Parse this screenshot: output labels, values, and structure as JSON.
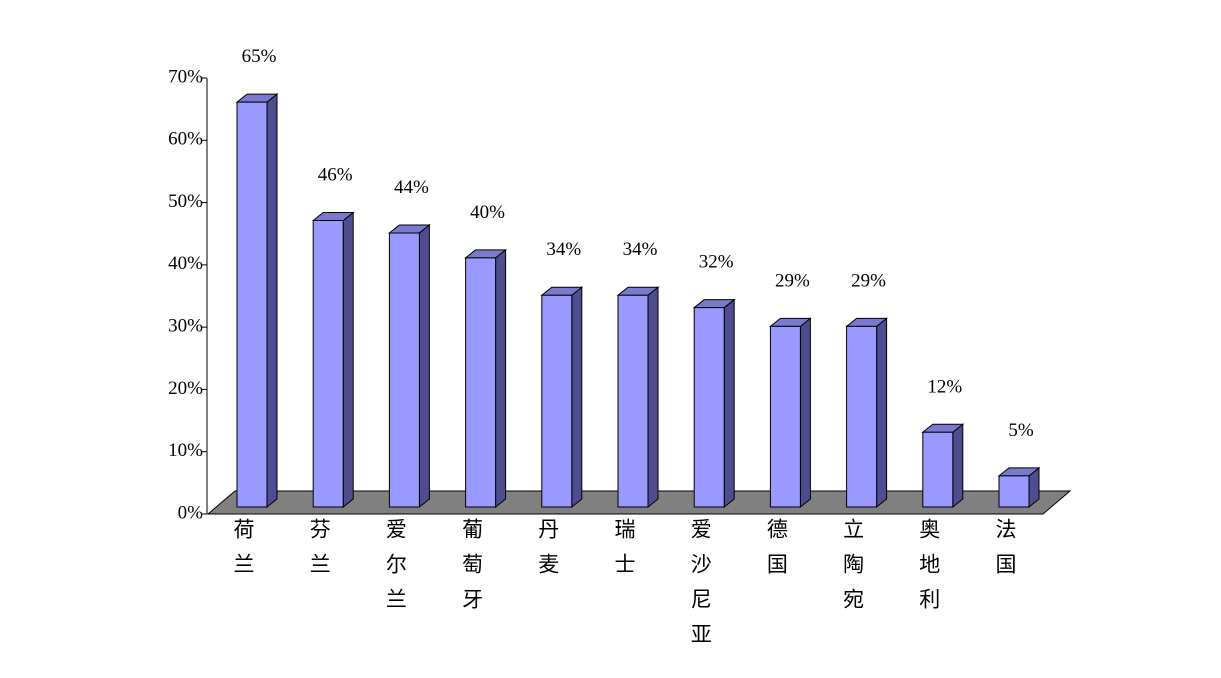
{
  "chart_data": {
    "type": "bar3d",
    "categories": [
      "荷兰",
      "芬兰",
      "爱尔兰",
      "葡萄牙",
      "丹麦",
      "瑞士",
      "爱沙尼亚",
      "德国",
      "立陶宛",
      "奥地利",
      "法国"
    ],
    "values": [
      65,
      46,
      44,
      40,
      34,
      34,
      32,
      29,
      29,
      12,
      5
    ],
    "value_labels": [
      "65%",
      "46%",
      "44%",
      "40%",
      "34%",
      "34%",
      "32%",
      "29%",
      "29%",
      "12%",
      "5%"
    ],
    "color": "#9999ff",
    "ylim": [
      0,
      70
    ],
    "yticks": [
      {
        "value": 0,
        "label": "0%"
      },
      {
        "value": 10,
        "label": "10%"
      },
      {
        "value": 20,
        "label": "20%"
      },
      {
        "value": 30,
        "label": "30%"
      },
      {
        "value": 40,
        "label": "40%"
      },
      {
        "value": 50,
        "label": "50%"
      },
      {
        "value": 60,
        "label": "60%"
      },
      {
        "value": 70,
        "label": "70%"
      }
    ]
  }
}
